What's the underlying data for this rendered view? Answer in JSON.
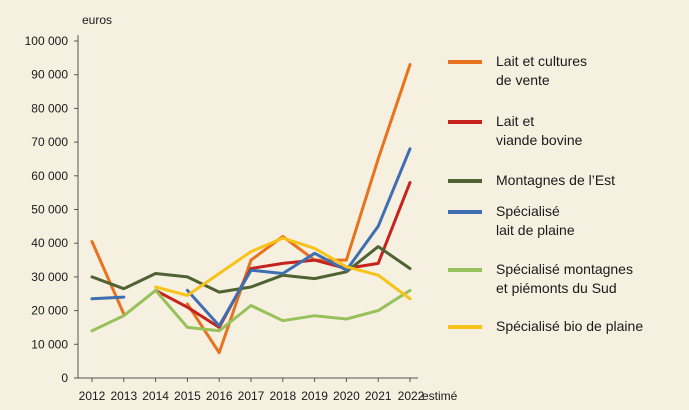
{
  "chart_data": {
    "type": "line",
    "ylabel": "euros",
    "xlabel": "",
    "ylim": [
      0,
      100000
    ],
    "y_ticks": [
      0,
      10000,
      20000,
      30000,
      40000,
      50000,
      60000,
      70000,
      80000,
      90000,
      100000
    ],
    "y_tick_labels": [
      "0",
      "10 000",
      "20 000",
      "30 000",
      "40 000",
      "50 000",
      "60 000",
      "70 000",
      "80 000",
      "90 000",
      "100 000"
    ],
    "categories": [
      "2012",
      "2013",
      "2014",
      "2015",
      "2016",
      "2017",
      "2018",
      "2019",
      "2020",
      "2021",
      "2022"
    ],
    "category_suffix": {
      "2022": "estimé"
    },
    "grid": false,
    "legend_position": "right",
    "series": [
      {
        "name": "Lait et cultures\nde vente",
        "color": "#e8731f",
        "values": [
          40500,
          19000,
          null,
          22000,
          7500,
          35000,
          42000,
          35000,
          35000,
          65000,
          93000
        ]
      },
      {
        "name": "Lait et\nviande bovine",
        "color": "#c6231f",
        "values": [
          null,
          null,
          26000,
          21000,
          15000,
          32500,
          34000,
          35000,
          32500,
          34000,
          58000
        ]
      },
      {
        "name": "Montagnes de l’Est",
        "color": "#4f6232",
        "values": [
          30000,
          26500,
          31000,
          30000,
          25500,
          27000,
          30500,
          29500,
          31500,
          39000,
          32500
        ]
      },
      {
        "name": "Spécialisé\nlait de plaine",
        "color": "#3f6fb0",
        "values": [
          23500,
          24000,
          null,
          26000,
          15500,
          32000,
          31000,
          37000,
          32000,
          45000,
          68000
        ]
      },
      {
        "name": "Spécialisé montagnes\net piémonts du Sud",
        "color": "#97c15a",
        "values": [
          14000,
          18500,
          26000,
          15000,
          14000,
          21500,
          17000,
          18500,
          17500,
          20000,
          26000
        ]
      },
      {
        "name": "Spécialisé bio de plaine",
        "color": "#f8c318",
        "values": [
          null,
          null,
          27000,
          24500,
          31000,
          37500,
          41500,
          38500,
          33000,
          30500,
          23500
        ]
      }
    ]
  }
}
